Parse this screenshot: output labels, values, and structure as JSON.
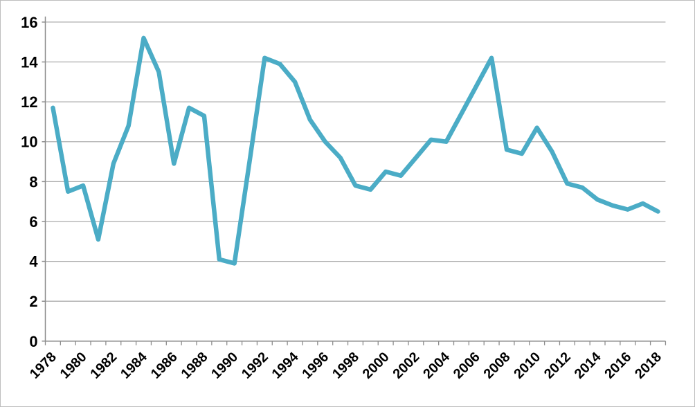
{
  "chart_data": {
    "type": "line",
    "title": "",
    "xlabel": "",
    "ylabel": "",
    "categories": [
      "1978",
      "1979",
      "1980",
      "1981",
      "1982",
      "1983",
      "1984",
      "1985",
      "1986",
      "1987",
      "1988",
      "1989",
      "1990",
      "1991",
      "1992",
      "1993",
      "1994",
      "1995",
      "1996",
      "1997",
      "1998",
      "1999",
      "2000",
      "2001",
      "2002",
      "2003",
      "2004",
      "2005",
      "2006",
      "2007",
      "2008",
      "2009",
      "2010",
      "2011",
      "2012",
      "2013",
      "2014",
      "2015",
      "2016",
      "2017",
      "2018"
    ],
    "series": [
      {
        "name": "value",
        "values": [
          11.7,
          7.5,
          7.8,
          5.1,
          8.9,
          10.8,
          15.2,
          13.5,
          8.9,
          11.7,
          11.3,
          4.1,
          3.9,
          9.0,
          14.2,
          13.9,
          13.0,
          11.1,
          10.0,
          9.2,
          7.8,
          7.6,
          8.5,
          8.3,
          9.2,
          10.1,
          10.0,
          11.4,
          12.8,
          14.2,
          9.6,
          9.4,
          10.7,
          9.5,
          7.9,
          7.7,
          7.1,
          6.8,
          6.6,
          6.9,
          6.5
        ]
      }
    ],
    "ylim": [
      0,
      16
    ],
    "ytick_step": 2,
    "ytick_labels": [
      "0",
      "2",
      "4",
      "6",
      "8",
      "10",
      "12",
      "14",
      "16"
    ],
    "x_label_every": 2,
    "grid": true,
    "legend_position": "none",
    "colors": {
      "line": "#4BACC6",
      "grid": "#ABABAB",
      "axis": "#8C8C8C",
      "label": "#000000",
      "frame": "#BDBDBD",
      "background": "#FFFFFF"
    }
  }
}
